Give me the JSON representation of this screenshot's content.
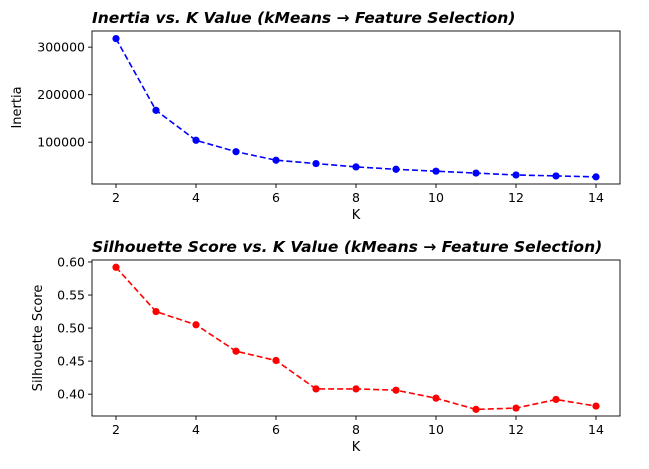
{
  "chart_data": [
    {
      "type": "line",
      "title": "Inertia vs. K Value (kMeans → Feature Selection)",
      "xlabel": "K",
      "ylabel": "Inertia",
      "color": "#0000ff",
      "line_style": "dashed",
      "marker": "circle",
      "xlim": [
        1.4,
        14.6
      ],
      "ylim": [
        12000,
        334000
      ],
      "xticks": [
        2,
        4,
        6,
        8,
        10,
        12,
        14
      ],
      "yticks": [
        100000,
        200000,
        300000
      ],
      "x": [
        2,
        3,
        4,
        5,
        6,
        7,
        8,
        9,
        10,
        11,
        12,
        13,
        14
      ],
      "y": [
        318000,
        167000,
        104000,
        80000,
        62000,
        55000,
        48000,
        43000,
        39000,
        35000,
        31000,
        29000,
        27000
      ]
    },
    {
      "type": "line",
      "title": "Silhouette Score vs. K Value (kMeans → Feature Selection)",
      "xlabel": "K",
      "ylabel": "Silhouette Score",
      "color": "#ff0000",
      "line_style": "dashed",
      "marker": "circle",
      "xlim": [
        1.4,
        14.6
      ],
      "ylim": [
        0.367,
        0.603
      ],
      "xticks": [
        2,
        4,
        6,
        8,
        10,
        12,
        14
      ],
      "yticks": [
        0.4,
        0.45,
        0.5,
        0.55,
        0.6
      ],
      "x": [
        2,
        3,
        4,
        5,
        6,
        7,
        8,
        9,
        10,
        11,
        12,
        13,
        14
      ],
      "y": [
        0.592,
        0.525,
        0.505,
        0.465,
        0.451,
        0.408,
        0.408,
        0.406,
        0.394,
        0.377,
        0.379,
        0.392,
        0.382
      ]
    }
  ]
}
